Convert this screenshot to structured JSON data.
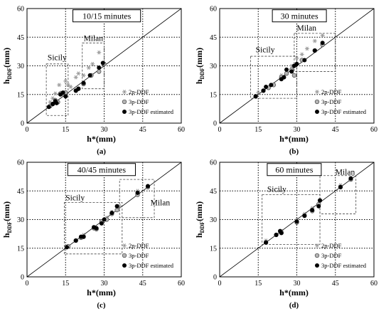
{
  "chart_data": [
    {
      "panel_label": "(a)",
      "title": "10/15 minutes",
      "type": "scatter",
      "xlabel": "h*(mm)",
      "ylabel": "hDDF(mm)",
      "xlim": [
        0,
        60
      ],
      "ylim": [
        0,
        60
      ],
      "xticks": [
        0,
        15,
        30,
        45,
        60
      ],
      "yticks": [
        0,
        15,
        30,
        45,
        60
      ],
      "grid": "dotted at 15, 30, 45",
      "legend": [
        "2p-DDF",
        "3p-DDF",
        "3p-DDF estimated"
      ],
      "legend_position": "bottom-right",
      "regions": [
        {
          "name": "Sicily",
          "x": [
            7.5,
            16
          ],
          "y": [
            4,
            31
          ]
        },
        {
          "name": "Milan",
          "x": [
            21.5,
            30
          ],
          "y": [
            18,
            42
          ]
        }
      ],
      "series": [
        {
          "name": "2p-DDF",
          "x": [
            9,
            10,
            11,
            12.5,
            13.5,
            15,
            16,
            17,
            19,
            20,
            22,
            24,
            25.5,
            28
          ],
          "y": [
            11,
            13,
            15.5,
            20,
            16,
            22,
            20,
            19,
            24,
            26,
            25,
            29,
            31,
            37
          ]
        },
        {
          "name": "3p-DDF",
          "x": [
            9,
            10,
            11,
            12,
            13,
            14.5,
            15,
            19,
            20,
            22,
            25,
            28,
            30
          ],
          "y": [
            9,
            10,
            12,
            11,
            15.5,
            15,
            16,
            17,
            18,
            20.5,
            25,
            27,
            31
          ]
        },
        {
          "name": "3p-DDF estimated",
          "x": [
            8.5,
            10,
            11,
            11.5,
            13,
            14,
            15,
            19,
            20,
            22,
            24.5,
            28,
            29.5
          ],
          "y": [
            8.5,
            10,
            11.5,
            10.5,
            15,
            16,
            14,
            17,
            18,
            21,
            25,
            29,
            31.5
          ]
        }
      ]
    },
    {
      "panel_label": "(b)",
      "title": "30 minutes",
      "type": "scatter",
      "xlabel": "h*(mm)",
      "ylabel": "hDDF(mm)",
      "xlim": [
        0,
        60
      ],
      "ylim": [
        0,
        60
      ],
      "xticks": [
        0,
        15,
        30,
        45,
        60
      ],
      "yticks": [
        0,
        15,
        30,
        45,
        60
      ],
      "grid": "dotted at 15, 30, 45",
      "legend": [
        "2p-DDF",
        "3p-DDF",
        "3p-DDF estimated"
      ],
      "legend_position": "bottom-right",
      "regions": [
        {
          "name": "Sicily",
          "x": [
            12,
            30
          ],
          "y": [
            13,
            35
          ]
        },
        {
          "name": "Milan",
          "x": [
            29,
            45
          ],
          "y": [
            27,
            47
          ]
        }
      ],
      "series": [
        {
          "name": "2p-DDF",
          "x": [
            15,
            20,
            24,
            26,
            28,
            30,
            32,
            34,
            37,
            40
          ],
          "y": [
            16,
            20,
            25,
            28,
            30,
            34,
            36,
            39,
            43,
            46
          ]
        },
        {
          "name": "3p-DDF",
          "x": [
            14,
            17,
            19,
            21,
            24,
            26,
            28,
            29,
            32,
            37,
            40
          ],
          "y": [
            14,
            17,
            18.5,
            20,
            24,
            26,
            28,
            25,
            33,
            38,
            41
          ]
        },
        {
          "name": "3p-DDF estimated",
          "x": [
            14,
            17,
            18,
            20,
            24,
            25,
            26,
            28,
            29,
            30,
            33,
            37,
            40
          ],
          "y": [
            14,
            17,
            19,
            20,
            23,
            24,
            28,
            27,
            30,
            31,
            33,
            38,
            42
          ]
        }
      ]
    },
    {
      "panel_label": "(c)",
      "title": "40/45 minutes",
      "type": "scatter",
      "xlabel": "h*(mm)",
      "ylabel": "hDDF(mm)",
      "xlim": [
        0,
        60
      ],
      "ylim": [
        0,
        60
      ],
      "xticks": [
        0,
        15,
        30,
        45,
        60
      ],
      "yticks": [
        0,
        15,
        30,
        45,
        60
      ],
      "grid": "dotted at 15, 30, 45",
      "legend": [
        "2p-DDF",
        "3p-DDF",
        "3p-DDF estimated"
      ],
      "legend_position": "bottom-right",
      "regions": [
        {
          "name": "Sicily",
          "x": [
            14.5,
            37
          ],
          "y": [
            12,
            39
          ]
        },
        {
          "name": "Milan",
          "x": [
            36,
            49.5
          ],
          "y": [
            31,
            51
          ]
        }
      ],
      "series": [
        {
          "name": "2p-DDF",
          "x": [
            16,
            19,
            22,
            26,
            29,
            31,
            33,
            36,
            43,
            47
          ],
          "y": [
            16,
            19,
            22,
            26,
            29,
            31,
            34,
            37,
            45,
            47
          ]
        },
        {
          "name": "3p-DDF",
          "x": [
            16,
            19,
            21,
            22,
            26,
            27,
            29,
            31,
            33,
            35,
            43,
            47
          ],
          "y": [
            16,
            19,
            20.5,
            21,
            25.5,
            25,
            29,
            30,
            33,
            35,
            43,
            47
          ]
        },
        {
          "name": "3p-DDF estimated",
          "x": [
            15.5,
            19,
            21,
            22,
            26,
            27,
            29,
            30,
            33,
            35,
            43,
            47
          ],
          "y": [
            15.5,
            19,
            21,
            21,
            26,
            25.5,
            28,
            30,
            33.5,
            37,
            44,
            47.5
          ]
        }
      ]
    },
    {
      "panel_label": "(d)",
      "title": "60 minutes",
      "type": "scatter",
      "xlabel": "h*(mm)",
      "ylabel": "hDDF(mm)",
      "xlim": [
        0,
        60
      ],
      "ylim": [
        0,
        60
      ],
      "xticks": [
        0,
        15,
        30,
        45,
        60
      ],
      "yticks": [
        0,
        15,
        30,
        45,
        60
      ],
      "grid": "dotted at 15, 30, 45",
      "legend": [
        "2p-DDF",
        "3p-DDF",
        "3p-DDF estimated"
      ],
      "legend_position": "bottom-right",
      "regions": [
        {
          "name": "Sicily",
          "x": [
            16.5,
            39
          ],
          "y": [
            17,
            43
          ]
        },
        {
          "name": "Milan",
          "x": [
            39,
            53
          ],
          "y": [
            33,
            53
          ]
        }
      ],
      "series": [
        {
          "name": "2p-DDF",
          "x": [
            18,
            22,
            24,
            30,
            33,
            36,
            39,
            47,
            51
          ],
          "y": [
            19,
            22,
            24,
            30,
            33,
            36,
            40,
            48,
            52
          ]
        },
        {
          "name": "3p-DDF",
          "x": [
            18,
            22,
            24,
            30,
            33,
            36,
            38.5,
            39,
            47,
            51
          ],
          "y": [
            18,
            22,
            23,
            28.5,
            32,
            34.5,
            38,
            40,
            47,
            51
          ]
        },
        {
          "name": "3p-DDF estimated",
          "x": [
            18,
            22,
            23.5,
            24,
            30,
            33,
            36,
            38.5,
            39,
            47,
            51
          ],
          "y": [
            18,
            22,
            24,
            23,
            29,
            32,
            35,
            37,
            40,
            47,
            51.5
          ]
        }
      ]
    }
  ]
}
